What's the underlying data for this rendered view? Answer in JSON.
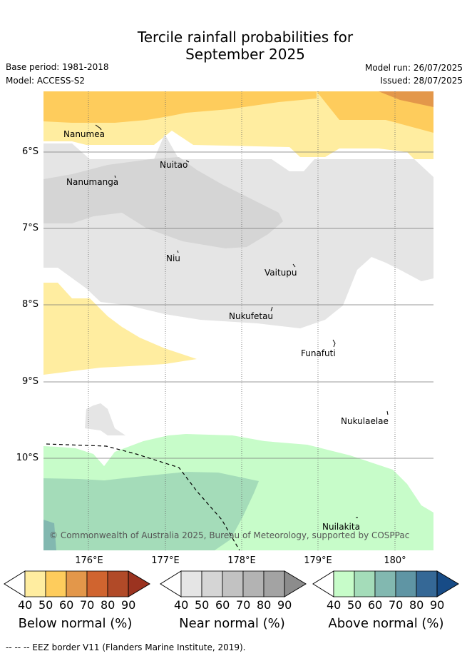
{
  "title": {
    "line1": "Tercile rainfall probabilities for",
    "line2": "September 2025"
  },
  "meta": {
    "base_period": "Base period: 1981-2018",
    "model": "Model: ACCESS-S2",
    "model_run": "Model run: 26/07/2025",
    "issued": "Issued: 28/07/2025"
  },
  "axes": {
    "lat_labels": [
      "6°S",
      "7°S",
      "8°S",
      "9°S",
      "10°S"
    ],
    "lon_labels": [
      "176°E",
      "177°E",
      "178°E",
      "179°E",
      "180°"
    ]
  },
  "places": [
    {
      "name": "Nanumea"
    },
    {
      "name": "Nuitao"
    },
    {
      "name": "Nanumanga"
    },
    {
      "name": "Niu"
    },
    {
      "name": "Vaitupu"
    },
    {
      "name": "Nukufetau"
    },
    {
      "name": "Funafuti"
    },
    {
      "name": "Nukulaelae"
    },
    {
      "name": "Nuilakita"
    }
  ],
  "copyright": "© Commonwealth of Australia 2025, Bureau of Meteorology, supported by COSPPac",
  "colorbars": [
    {
      "title": "Below normal (%)",
      "ticks": [
        "40",
        "50",
        "60",
        "70",
        "80",
        "90"
      ],
      "colors": [
        "#ffeda0",
        "#fecc5c",
        "#e3974a",
        "#d0642f",
        "#b14a28",
        "#9b3320"
      ]
    },
    {
      "title": "Near normal (%)",
      "ticks": [
        "40",
        "50",
        "60",
        "70",
        "80",
        "90"
      ],
      "colors": [
        "#e5e5e5",
        "#d5d5d5",
        "#c2c2c2",
        "#b3b3b3",
        "#a3a3a3",
        "#8c8c8c"
      ]
    },
    {
      "title": "Above normal (%)",
      "ticks": [
        "40",
        "50",
        "60",
        "70",
        "80",
        "90"
      ],
      "colors": [
        "#c7fcc9",
        "#a4dcb9",
        "#82b8b0",
        "#5f95a4",
        "#356896",
        "#174b86"
      ]
    }
  ],
  "footer": "-- -- -- EEZ border V11 (Flanders Marine Institute, 2019)."
}
